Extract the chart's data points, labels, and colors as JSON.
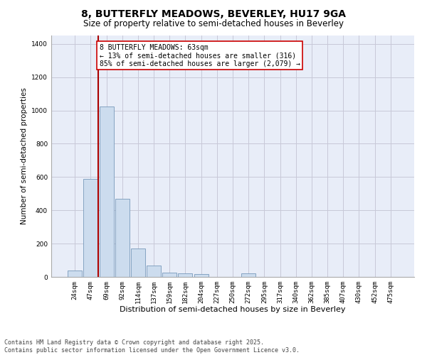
{
  "title_line1": "8, BUTTERFLY MEADOWS, BEVERLEY, HU17 9GA",
  "title_line2": "Size of property relative to semi-detached houses in Beverley",
  "xlabel": "Distribution of semi-detached houses by size in Beverley",
  "ylabel": "Number of semi-detached properties",
  "categories": [
    "24sqm",
    "47sqm",
    "69sqm",
    "92sqm",
    "114sqm",
    "137sqm",
    "159sqm",
    "182sqm",
    "204sqm",
    "227sqm",
    "250sqm",
    "272sqm",
    "295sqm",
    "317sqm",
    "340sqm",
    "362sqm",
    "385sqm",
    "407sqm",
    "430sqm",
    "452sqm",
    "475sqm"
  ],
  "values": [
    38,
    590,
    1025,
    470,
    170,
    70,
    25,
    20,
    15,
    0,
    0,
    20,
    0,
    0,
    0,
    0,
    0,
    0,
    0,
    0,
    0
  ],
  "bar_color": "#ccdcee",
  "bar_edge_color": "#7799bb",
  "grid_color": "#c8c8d8",
  "background_color": "#e8edf8",
  "vline_color": "#aa0000",
  "annotation_text": "8 BUTTERFLY MEADOWS: 63sqm\n← 13% of semi-detached houses are smaller (316)\n85% of semi-detached houses are larger (2,079) →",
  "annotation_box_color": "white",
  "annotation_box_edge": "#cc0000",
  "ylim": [
    0,
    1450
  ],
  "yticks": [
    0,
    200,
    400,
    600,
    800,
    1000,
    1200,
    1400
  ],
  "footer_line1": "Contains HM Land Registry data © Crown copyright and database right 2025.",
  "footer_line2": "Contains public sector information licensed under the Open Government Licence v3.0.",
  "title_fontsize": 10,
  "subtitle_fontsize": 8.5,
  "ylabel_fontsize": 7.5,
  "xlabel_fontsize": 8,
  "tick_fontsize": 6.5,
  "annotation_fontsize": 7,
  "footer_fontsize": 6
}
